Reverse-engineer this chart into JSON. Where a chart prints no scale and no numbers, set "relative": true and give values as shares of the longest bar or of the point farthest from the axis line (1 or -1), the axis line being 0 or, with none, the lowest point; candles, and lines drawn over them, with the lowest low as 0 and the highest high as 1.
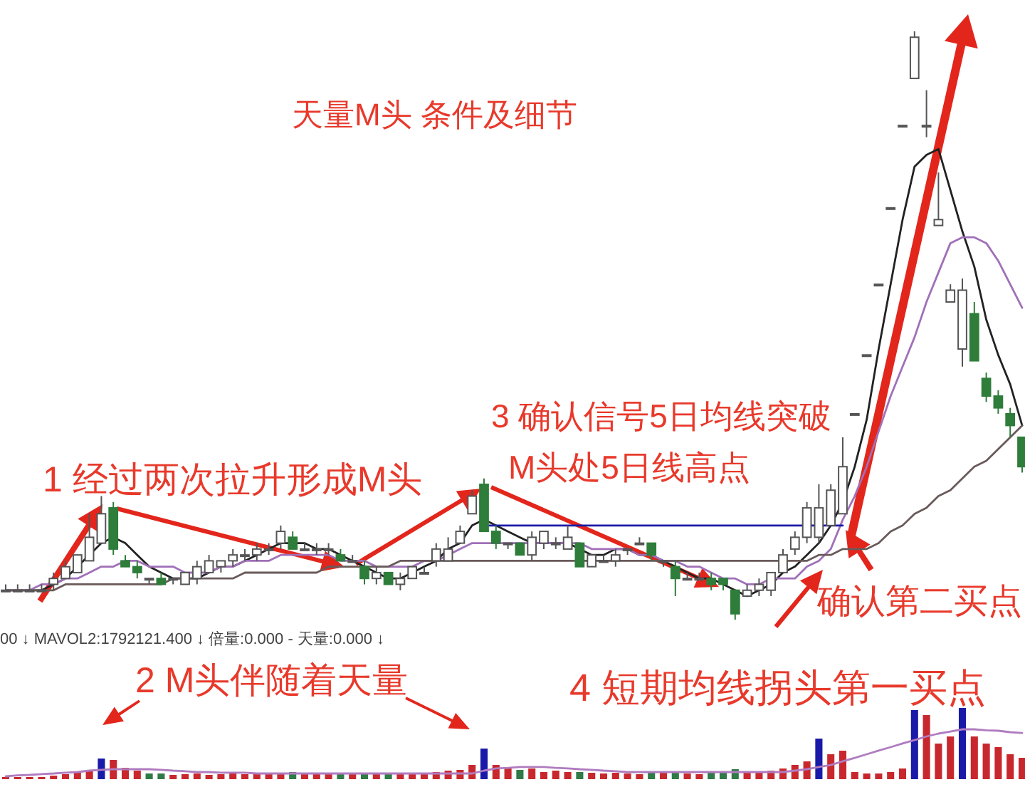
{
  "chart_data": [
    {
      "type": "candlestick",
      "relative": true,
      "title": "天量M头  条件及细节",
      "categories": [
        null,
        null,
        null,
        null,
        null,
        null,
        null,
        null,
        null,
        null,
        null,
        null,
        null,
        null,
        null,
        null,
        null,
        null,
        null,
        null,
        null,
        null,
        null,
        null,
        null,
        null,
        null,
        null,
        null,
        null,
        null,
        null,
        null,
        null,
        null,
        null,
        null,
        null,
        null,
        null,
        null,
        null,
        null,
        null,
        null,
        null,
        null,
        null,
        null,
        null,
        null,
        null,
        null,
        null,
        null,
        null,
        null,
        null,
        null,
        null,
        null,
        null,
        null,
        null,
        null,
        null,
        null,
        null,
        null,
        null,
        null,
        null,
        null,
        null,
        null,
        null,
        null,
        null,
        null,
        null,
        null,
        null,
        null,
        null,
        null,
        null
      ],
      "ohlc": [
        [
          0.05,
          0.06,
          0.05,
          0.05
        ],
        [
          0.05,
          0.06,
          0.05,
          0.05
        ],
        [
          0.05,
          0.06,
          0.05,
          0.05
        ],
        [
          0.05,
          0.06,
          0.05,
          0.05
        ],
        [
          0.06,
          0.08,
          0.05,
          0.07
        ],
        [
          0.07,
          0.1,
          0.07,
          0.09
        ],
        [
          0.08,
          0.11,
          0.08,
          0.11
        ],
        [
          0.1,
          0.18,
          0.1,
          0.14
        ],
        [
          0.13,
          0.21,
          0.13,
          0.18
        ],
        [
          0.19,
          0.2,
          0.11,
          0.12
        ],
        [
          0.1,
          0.11,
          0.09,
          0.09
        ],
        [
          0.09,
          0.1,
          0.07,
          0.08
        ],
        [
          0.07,
          0.07,
          0.06,
          0.07
        ],
        [
          0.07,
          0.08,
          0.06,
          0.06
        ],
        [
          0.07,
          0.07,
          0.06,
          0.07
        ],
        [
          0.06,
          0.08,
          0.06,
          0.08
        ],
        [
          0.07,
          0.1,
          0.06,
          0.09
        ],
        [
          0.08,
          0.11,
          0.08,
          0.1
        ],
        [
          0.09,
          0.1,
          0.08,
          0.1
        ],
        [
          0.1,
          0.12,
          0.09,
          0.11
        ],
        [
          0.11,
          0.12,
          0.1,
          0.11
        ],
        [
          0.11,
          0.13,
          0.1,
          0.12
        ],
        [
          0.12,
          0.13,
          0.11,
          0.12
        ],
        [
          0.13,
          0.16,
          0.12,
          0.15
        ],
        [
          0.14,
          0.15,
          0.12,
          0.12
        ],
        [
          0.12,
          0.13,
          0.12,
          0.12
        ],
        [
          0.12,
          0.13,
          0.11,
          0.12
        ],
        [
          0.12,
          0.13,
          0.11,
          0.12
        ],
        [
          0.11,
          0.12,
          0.1,
          0.1
        ],
        [
          0.1,
          0.11,
          0.1,
          0.1
        ],
        [
          0.09,
          0.1,
          0.06,
          0.07
        ],
        [
          0.07,
          0.09,
          0.06,
          0.08
        ],
        [
          0.08,
          0.08,
          0.06,
          0.06
        ],
        [
          0.06,
          0.08,
          0.05,
          0.07
        ],
        [
          0.07,
          0.09,
          0.07,
          0.09
        ],
        [
          0.08,
          0.09,
          0.08,
          0.08
        ],
        [
          0.1,
          0.13,
          0.09,
          0.12
        ],
        [
          0.1,
          0.14,
          0.1,
          0.12
        ],
        [
          0.13,
          0.16,
          0.13,
          0.15
        ],
        [
          0.18,
          0.22,
          0.18,
          0.21
        ],
        [
          0.23,
          0.24,
          0.15,
          0.15
        ],
        [
          0.15,
          0.16,
          0.12,
          0.13
        ],
        [
          0.13,
          0.13,
          0.12,
          0.13
        ],
        [
          0.13,
          0.13,
          0.11,
          0.11
        ],
        [
          0.11,
          0.15,
          0.1,
          0.14
        ],
        [
          0.13,
          0.15,
          0.12,
          0.15
        ],
        [
          0.13,
          0.14,
          0.12,
          0.13
        ],
        [
          0.12,
          0.16,
          0.12,
          0.14
        ],
        [
          0.13,
          0.13,
          0.09,
          0.09
        ],
        [
          0.09,
          0.11,
          0.09,
          0.11
        ],
        [
          0.1,
          0.11,
          0.1,
          0.1
        ],
        [
          0.1,
          0.12,
          0.09,
          0.11
        ],
        [
          0.12,
          0.12,
          0.11,
          0.12
        ],
        [
          0.13,
          0.14,
          0.13,
          0.13
        ],
        [
          0.13,
          0.13,
          0.1,
          0.11
        ],
        [
          0.1,
          0.1,
          0.09,
          0.1
        ],
        [
          0.09,
          0.1,
          0.04,
          0.07
        ],
        [
          0.07,
          0.08,
          0.07,
          0.07
        ],
        [
          0.07,
          0.08,
          0.07,
          0.07
        ],
        [
          0.07,
          0.08,
          0.05,
          0.06
        ],
        [
          0.07,
          0.07,
          0.05,
          0.06
        ],
        [
          0.05,
          0.05,
          0,
          0.01
        ],
        [
          0.04,
          0.06,
          0.04,
          0.05
        ],
        [
          0.05,
          0.07,
          0.04,
          0.06
        ],
        [
          0.05,
          0.08,
          0.04,
          0.08
        ],
        [
          0.08,
          0.12,
          0.08,
          0.11
        ],
        [
          0.12,
          0.15,
          0.11,
          0.14
        ],
        [
          0.14,
          0.2,
          0.13,
          0.19
        ],
        [
          0.14,
          0.23,
          0.13,
          0.19
        ],
        [
          0.16,
          0.23,
          0.16,
          0.22
        ],
        [
          0.18,
          0.31,
          0.18,
          0.26
        ],
        [
          0.35,
          0.35,
          0.35,
          0.35
        ],
        [
          0.45,
          0.45,
          0.45,
          0.45
        ],
        [
          0.57,
          0.57,
          0.57,
          0.57
        ],
        [
          0.7,
          0.7,
          0.7,
          0.7
        ],
        [
          0.84,
          0.84,
          0.84,
          0.84
        ],
        [
          0.92,
          1,
          0.92,
          0.99
        ],
        [
          0.84,
          0.9,
          0.82,
          0.84
        ],
        [
          0.67,
          0.76,
          0.67,
          0.68
        ],
        [
          0.54,
          0.57,
          0.54,
          0.56
        ],
        [
          0.46,
          0.58,
          0.43,
          0.56
        ],
        [
          0.52,
          0.54,
          0.44,
          0.44
        ],
        [
          0.41,
          0.42,
          0.37,
          0.38
        ],
        [
          0.38,
          0.39,
          0.35,
          0.36
        ],
        [
          0.35,
          0.36,
          0.31,
          0.33
        ],
        [
          0.31,
          0.31,
          0.25,
          0.26
        ]
      ],
      "series": [
        {
          "type": "line",
          "color": "#222222",
          "values": [
            0.05,
            0.05,
            0.05,
            0.05,
            0.06,
            0.07,
            0.09,
            0.11,
            0.13,
            0.14,
            0.13,
            0.11,
            0.09,
            0.08,
            0.07,
            0.07,
            0.07,
            0.08,
            0.09,
            0.09,
            0.1,
            0.11,
            0.12,
            0.13,
            0.13,
            0.13,
            0.12,
            0.12,
            0.11,
            0.1,
            0.09,
            0.08,
            0.07,
            0.07,
            0.08,
            0.09,
            0.1,
            0.12,
            0.13,
            0.16,
            0.17,
            0.16,
            0.15,
            0.14,
            0.13,
            0.13,
            0.13,
            0.13,
            0.12,
            0.11,
            0.11,
            0.12,
            0.12,
            0.11,
            0.11,
            0.1,
            0.09,
            0.08,
            0.07,
            0.07,
            0.06,
            0.05,
            0.04,
            0.05,
            0.06,
            0.08,
            0.09,
            0.11,
            0.13,
            0.16,
            0.2,
            0.26,
            0.34,
            0.46,
            0.57,
            0.68,
            0.77,
            0.79,
            0.8,
            0.73,
            0.66,
            0.6,
            0.51,
            0.45,
            0.4,
            0.33
          ]
        },
        {
          "type": "line",
          "color": "#a070b8",
          "values": [
            0.05,
            0.05,
            0.05,
            0.06,
            0.06,
            0.07,
            0.07,
            0.08,
            0.09,
            0.09,
            0.1,
            0.1,
            0.09,
            0.09,
            0.09,
            0.08,
            0.08,
            0.08,
            0.09,
            0.09,
            0.1,
            0.1,
            0.1,
            0.11,
            0.11,
            0.11,
            0.11,
            0.11,
            0.1,
            0.1,
            0.1,
            0.09,
            0.09,
            0.09,
            0.09,
            0.1,
            0.1,
            0.11,
            0.12,
            0.13,
            0.13,
            0.13,
            0.13,
            0.13,
            0.13,
            0.13,
            0.13,
            0.13,
            0.13,
            0.12,
            0.12,
            0.12,
            0.12,
            0.11,
            0.11,
            0.1,
            0.1,
            0.09,
            0.09,
            0.08,
            0.07,
            0.07,
            0.06,
            0.06,
            0.07,
            0.07,
            0.07,
            0.09,
            0.1,
            0.12,
            0.17,
            0.21,
            0.26,
            0.32,
            0.38,
            0.43,
            0.48,
            0.54,
            0.59,
            0.64,
            0.65,
            0.65,
            0.64,
            0.61,
            0.57,
            0.53
          ]
        },
        {
          "type": "line",
          "color": "#6a5a5a",
          "values": [
            0.05,
            0.05,
            0.05,
            0.05,
            0.05,
            0.06,
            0.06,
            0.06,
            0.06,
            0.06,
            0.06,
            0.06,
            0.06,
            0.06,
            0.07,
            0.07,
            0.07,
            0.07,
            0.07,
            0.07,
            0.08,
            0.08,
            0.08,
            0.08,
            0.08,
            0.08,
            0.08,
            0.09,
            0.09,
            0.09,
            0.09,
            0.09,
            0.09,
            0.1,
            0.1,
            0.1,
            0.1,
            0.1,
            0.1,
            0.1,
            0.1,
            0.1,
            0.1,
            0.1,
            0.1,
            0.1,
            0.1,
            0.1,
            0.1,
            0.1,
            0.1,
            0.1,
            0.1,
            0.1,
            0.1,
            0.1,
            0.1,
            0.1,
            0.1,
            0.1,
            0.1,
            0.1,
            0.1,
            0.1,
            0.1,
            0.1,
            0.1,
            0.1,
            0.11,
            0.11,
            0.12,
            0.12,
            0.12,
            0.13,
            0.15,
            0.16,
            0.18,
            0.19,
            0.21,
            0.22,
            0.24,
            0.26,
            0.27,
            0.29,
            0.31,
            0.33
          ]
        },
        {
          "type": "line",
          "color": "#1a1aa8",
          "values": [
            null,
            null,
            null,
            null,
            null,
            null,
            null,
            null,
            null,
            null,
            null,
            null,
            null,
            null,
            null,
            null,
            null,
            null,
            null,
            null,
            null,
            null,
            null,
            null,
            null,
            null,
            null,
            null,
            null,
            null,
            null,
            null,
            null,
            null,
            null,
            null,
            null,
            null,
            null,
            null,
            0.16,
            0.16,
            0.16,
            0.16,
            0.16,
            0.16,
            0.16,
            0.16,
            0.16,
            0.16,
            0.16,
            0.16,
            0.16,
            0.16,
            0.16,
            0.16,
            0.16,
            0.16,
            0.16,
            0.16,
            0.16,
            0.16,
            0.16,
            0.16,
            0.16,
            0.16,
            0.16,
            0.16,
            0.16,
            0.16,
            0.16,
            null,
            null,
            null,
            null,
            null,
            null,
            null,
            null,
            null,
            null,
            null,
            null,
            null,
            null,
            null
          ]
        }
      ],
      "annotations": [
        "1 经过两次拉升形成M头",
        "3 确认信号5日均线突破",
        "M头处5日线高点",
        "确认第二买点",
        "4 短期均线拐头第一买点"
      ]
    },
    {
      "type": "bar",
      "relative": true,
      "categories": [
        null,
        null,
        null,
        null,
        null,
        null,
        null,
        null,
        null,
        null,
        null,
        null,
        null,
        null,
        null,
        null,
        null,
        null,
        null,
        null,
        null,
        null,
        null,
        null,
        null,
        null,
        null,
        null,
        null,
        null,
        null,
        null,
        null,
        null,
        null,
        null,
        null,
        null,
        null,
        null,
        null,
        null,
        null,
        null,
        null,
        null,
        null,
        null,
        null,
        null,
        null,
        null,
        null,
        null,
        null,
        null,
        null,
        null,
        null,
        null,
        null,
        null,
        null,
        null,
        null,
        null,
        null,
        null,
        null,
        null,
        null,
        null,
        null,
        null,
        null,
        null,
        null,
        null,
        null,
        null,
        null,
        null,
        null,
        null,
        null,
        null
      ],
      "values": [
        0.03,
        0.03,
        0.03,
        0.03,
        0.05,
        0.07,
        0.1,
        0.13,
        0.29,
        0.27,
        0.16,
        0.12,
        0.08,
        0.08,
        0.06,
        0.07,
        0.08,
        0.06,
        0.07,
        0.08,
        0.07,
        0.08,
        0.09,
        0.07,
        0.1,
        0.08,
        0.07,
        0.08,
        0.09,
        0.07,
        0.08,
        0.07,
        0.09,
        0.08,
        0.07,
        0.08,
        0.1,
        0.12,
        0.13,
        0.2,
        0.43,
        0.2,
        0.15,
        0.13,
        0.15,
        0.1,
        0.12,
        0.1,
        0.1,
        0.09,
        0.08,
        0.09,
        0.08,
        0.07,
        0.09,
        0.1,
        0.09,
        0.08,
        0.07,
        0.1,
        0.09,
        0.14,
        0.09,
        0.1,
        0.12,
        0.15,
        0.2,
        0.25,
        0.57,
        0.35,
        0.4,
        0.1,
        0.08,
        0.08,
        0.1,
        0.15,
        0.97,
        0.9,
        0.5,
        0.6,
        1,
        0.6,
        0.5,
        0.45,
        0.35,
        0.3
      ],
      "colors": [
        "#c8282d",
        "#c8282d",
        "#c8282d",
        "#c8282d",
        "#c8282d",
        "#c8282d",
        "#c8282d",
        "#c8282d",
        "#1a1aa8",
        "#c8282d",
        "#c8282d",
        "#c8282d",
        "#2f7a46",
        "#2f7a46",
        "#c8282d",
        "#c8282d",
        "#c8282d",
        "#c8282d",
        "#c8282d",
        "#c8282d",
        "#c8282d",
        "#c8282d",
        "#c8282d",
        "#c8282d",
        "#2f7a46",
        "#c8282d",
        "#c8282d",
        "#c8282d",
        "#2f7a46",
        "#c8282d",
        "#2f7a46",
        "#c8282d",
        "#2f7a46",
        "#c8282d",
        "#c8282d",
        "#c8282d",
        "#c8282d",
        "#c8282d",
        "#c8282d",
        "#c8282d",
        "#1a1aa8",
        "#c8282d",
        "#c8282d",
        "#2f7a46",
        "#c8282d",
        "#c8282d",
        "#c8282d",
        "#c8282d",
        "#2f7a46",
        "#c8282d",
        "#c8282d",
        "#c8282d",
        "#c8282d",
        "#c8282d",
        "#2f7a46",
        "#c8282d",
        "#2f7a46",
        "#c8282d",
        "#c8282d",
        "#2f7a46",
        "#2f7a46",
        "#2f7a46",
        "#c8282d",
        "#c8282d",
        "#c8282d",
        "#c8282d",
        "#c8282d",
        "#c8282d",
        "#1a1aa8",
        "#c8282d",
        "#c8282d",
        "#c8282d",
        "#c8282d",
        "#c8282d",
        "#c8282d",
        "#c8282d",
        "#1a1aa8",
        "#c8282d",
        "#c8282d",
        "#c8282d",
        "#1a1aa8",
        "#c8282d",
        "#c8282d",
        "#c8282d",
        "#c8282d",
        "#c8282d"
      ],
      "annotations": [
        "2 M头伴随着天量",
        "00 ↓ MAVOL2:1792121.400 ↓ 倍量:0.000 - 天量:0.000 ↓"
      ]
    },
    {
      "type": "line",
      "relative": true,
      "color": "#b07cc0",
      "categories": [
        null,
        null,
        null,
        null,
        null,
        null,
        null,
        null,
        null,
        null,
        null,
        null,
        null,
        null,
        null,
        null,
        null,
        null,
        null,
        null,
        null,
        null,
        null,
        null,
        null,
        null,
        null,
        null,
        null,
        null,
        null,
        null,
        null,
        null,
        null,
        null,
        null,
        null,
        null,
        null,
        null,
        null,
        null,
        null,
        null,
        null,
        null,
        null,
        null,
        null,
        null,
        null,
        null,
        null,
        null,
        null,
        null,
        null,
        null,
        null,
        null,
        null,
        null,
        null,
        null,
        null,
        null,
        null,
        null,
        null,
        null,
        null,
        null,
        null,
        null,
        null,
        null,
        null,
        null,
        null,
        null,
        null,
        null,
        null,
        null,
        null
      ],
      "values": [
        0,
        0.02,
        0.03,
        0.05,
        0.06,
        0.08,
        0.09,
        0.12,
        0.14,
        0.15,
        0.15,
        0.15,
        0.15,
        0.14,
        0.12,
        0.11,
        0.09,
        0.09,
        0.08,
        0.08,
        0.08,
        0.06,
        0.06,
        0.06,
        0.06,
        0.06,
        0.06,
        0.06,
        0.06,
        0.06,
        0.06,
        0.06,
        0.06,
        0.06,
        0.06,
        0.06,
        0.06,
        0.06,
        0.06,
        0.06,
        0.12,
        0.17,
        0.18,
        0.2,
        0.2,
        0.2,
        0.18,
        0.17,
        0.15,
        0.14,
        0.12,
        0.11,
        0.09,
        0.09,
        0.09,
        0.09,
        0.09,
        0.09,
        0.09,
        0.09,
        0.09,
        0.09,
        0.09,
        0.09,
        0.09,
        0.09,
        0.12,
        0.15,
        0.2,
        0.24,
        0.32,
        0.39,
        0.47,
        0.55,
        0.62,
        0.7,
        0.77,
        0.85,
        0.91,
        0.95,
        1,
        1,
        0.98,
        0.97,
        0.94,
        0.92
      ]
    }
  ]
}
